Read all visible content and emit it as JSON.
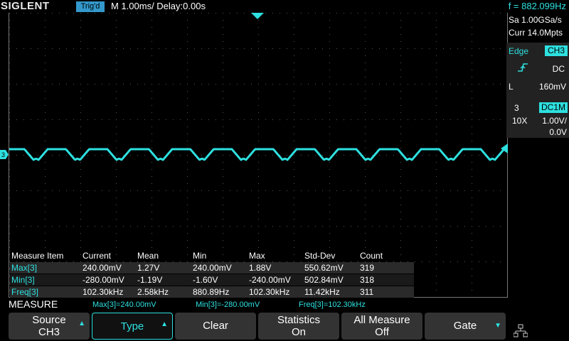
{
  "header": {
    "logo": "SIGLENT",
    "trigger_status": "Trig'd",
    "timebase": "M 1.00ms/ Delay:0.00s",
    "frequency": "f = 882.099Hz"
  },
  "right_panel": {
    "sample_rate": "Sa 1.00GSa/s",
    "memory_depth": "Curr 14.0Mpts",
    "trigger": {
      "type": "Edge",
      "source": "CH3",
      "coupling": "DC",
      "level_label": "L",
      "level": "160mV",
      "slope_icon": "rising-edge-icon"
    },
    "channel": {
      "number": "3",
      "impedance": "DC1M",
      "probe": "10X",
      "scale": "1.00V/",
      "offset": "0.0V"
    }
  },
  "waveform": {
    "channel_marker": "3",
    "color": "#2ee0e0",
    "cycles": 12
  },
  "measure_table": {
    "headers": [
      "Measure Item",
      "Current",
      "Mean",
      "Min",
      "Max",
      "Std-Dev",
      "Count"
    ],
    "rows": [
      [
        "Max[3]",
        "240.00mV",
        "1.27V",
        "240.00mV",
        "1.88V",
        "550.62mV",
        "319"
      ],
      [
        "Min[3]",
        "-280.00mV",
        "-1.19V",
        "-1.60V",
        "-240.00mV",
        "502.84mV",
        "318"
      ],
      [
        "Freq[3]",
        "102.30kHz",
        "2.58kHz",
        "880.89Hz",
        "102.30kHz",
        "11.42kHz",
        "311"
      ]
    ]
  },
  "measure_bar": {
    "label": "MEASURE",
    "summaries": [
      "Max[3]=240.00mV",
      "Min[3]=-280.00mV",
      "Freq[3]=102.30kHz"
    ]
  },
  "softkeys": {
    "source": {
      "line1": "Source",
      "line2": "CH3"
    },
    "type": {
      "label": "Type"
    },
    "clear": {
      "label": "Clear"
    },
    "statistics": {
      "line1": "Statistics",
      "line2": "On"
    },
    "all_measure": {
      "line1": "All Measure",
      "line2": "Off"
    },
    "gate": {
      "label": "Gate"
    },
    "network_icon": "network-icon"
  }
}
